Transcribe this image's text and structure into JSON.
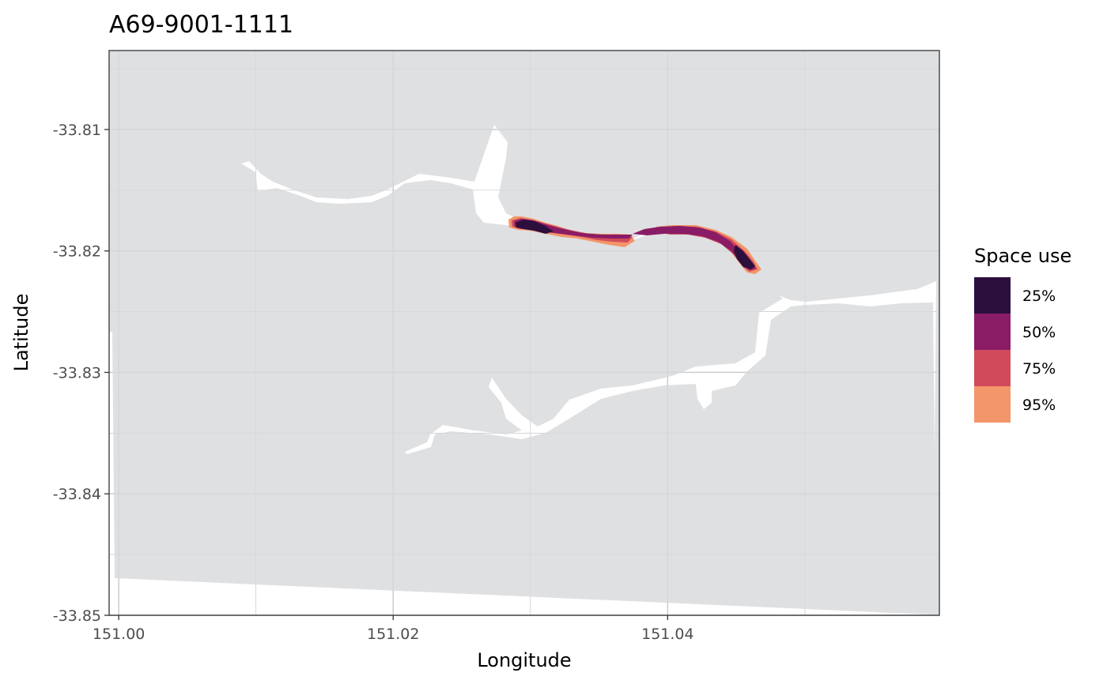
{
  "chart_data": {
    "type": "map",
    "title": "A69-9001-1111",
    "xlabel": "Longitude",
    "ylabel": "Latitude",
    "xlim": [
      150.9993,
      151.0598
    ],
    "ylim": [
      -33.85,
      -33.8035
    ],
    "x_ticks": [
      151.0,
      151.02,
      151.04
    ],
    "x_tick_labels": [
      "151.00",
      "151.02",
      "151.04"
    ],
    "y_ticks": [
      -33.81,
      -33.82,
      -33.83,
      -33.84,
      -33.85
    ],
    "y_tick_labels": [
      "-33.81",
      "-33.82",
      "-33.83",
      "-33.84",
      "-33.85"
    ],
    "grid": true,
    "background_color": "#dcdde0",
    "water_color": "#ffffff",
    "legend": {
      "title": "Space use",
      "position": "right",
      "entries": [
        {
          "label": "25%",
          "color": "#2d0f3e"
        },
        {
          "label": "50%",
          "color": "#8a1c66"
        },
        {
          "label": "75%",
          "color": "#d14a5c"
        },
        {
          "label": "95%",
          "color": "#f3966a"
        }
      ]
    }
  }
}
